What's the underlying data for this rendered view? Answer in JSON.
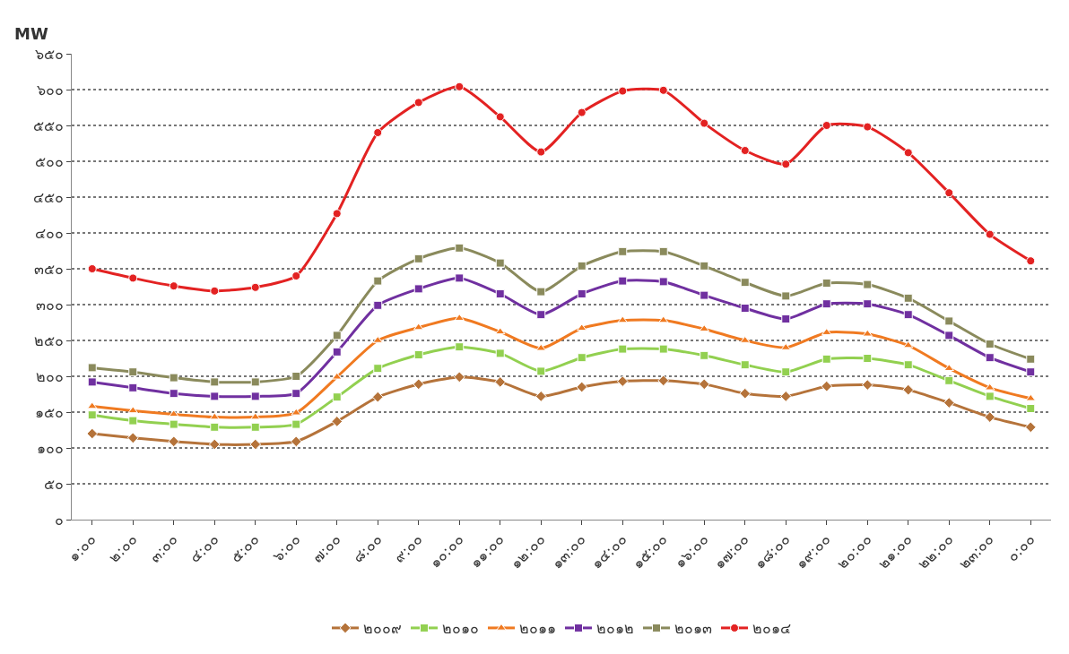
{
  "chart_data": {
    "type": "line",
    "ylabel": "MW",
    "categories": [
      "๑:๐๐",
      "๒:๐๐",
      "๓:๐๐",
      "๔:๐๐",
      "๕:๐๐",
      "๖:๐๐",
      "๗:๐๐",
      "๘:๐๐",
      "๙:๐๐",
      "๑๐:๐๐",
      "๑๑:๐๐",
      "๑๒:๐๐",
      "๑๓:๐๐",
      "๑๔:๐๐",
      "๑๕:๐๐",
      "๑๖:๐๐",
      "๑๗:๐๐",
      "๑๘:๐๐",
      "๑๙:๐๐",
      "๒๐:๐๐",
      "๒๑:๐๐",
      "๒๒:๐๐",
      "๒๓:๐๐",
      "๐:๐๐"
    ],
    "series": [
      {
        "name": "๒๐๐๙",
        "color": "#b5733a",
        "marker": "diamond",
        "values": [
          120,
          114,
          109,
          105,
          105,
          109,
          137,
          171,
          189,
          199,
          192,
          172,
          185,
          193,
          194,
          189,
          176,
          172,
          186,
          188,
          181,
          163,
          143,
          129
        ]
      },
      {
        "name": "๒๐๑๐",
        "color": "#92d050",
        "marker": "square",
        "values": [
          146,
          138,
          133,
          129,
          129,
          133,
          171,
          211,
          230,
          241,
          232,
          207,
          226,
          238,
          238,
          229,
          216,
          206,
          224,
          225,
          216,
          194,
          172,
          155
        ]
      },
      {
        "name": "๒๐๑๑",
        "color": "#f07a21",
        "marker": "triangle",
        "values": [
          158,
          152,
          147,
          143,
          143,
          149,
          199,
          250,
          268,
          281,
          262,
          239,
          267,
          278,
          278,
          266,
          250,
          240,
          261,
          259,
          243,
          211,
          184,
          169
        ]
      },
      {
        "name": "๒๐๑๒",
        "color": "#7030a0",
        "marker": "square",
        "values": [
          192,
          184,
          176,
          172,
          172,
          176,
          234,
          299,
          322,
          337,
          315,
          286,
          315,
          333,
          332,
          313,
          295,
          280,
          301,
          301,
          286,
          257,
          226,
          206
        ]
      },
      {
        "name": "๒๐๑๓",
        "color": "#8a8a5c",
        "marker": "square",
        "values": [
          212,
          206,
          198,
          192,
          192,
          200,
          257,
          333,
          364,
          379,
          358,
          318,
          354,
          374,
          374,
          354,
          331,
          312,
          330,
          328,
          309,
          277,
          245,
          224
        ]
      },
      {
        "name": "๒๐๑๔",
        "color": "#e32222",
        "marker": "circle",
        "values": [
          350,
          337,
          326,
          319,
          324,
          340,
          427,
          540,
          582,
          604,
          562,
          513,
          568,
          598,
          599,
          553,
          515,
          496,
          550,
          548,
          512,
          456,
          398,
          361
        ]
      }
    ],
    "ylim": [
      0,
      650
    ],
    "yticks": [
      {
        "value": 0,
        "label": "๐"
      },
      {
        "value": 50,
        "label": "๕๐"
      },
      {
        "value": 100,
        "label": "๑๐๐"
      },
      {
        "value": 150,
        "label": "๑๕๐"
      },
      {
        "value": 200,
        "label": "๒๐๐"
      },
      {
        "value": 250,
        "label": "๒๕๐"
      },
      {
        "value": 300,
        "label": "๓๐๐"
      },
      {
        "value": 350,
        "label": "๓๕๐"
      },
      {
        "value": 400,
        "label": "๔๐๐"
      },
      {
        "value": 450,
        "label": "๔๕๐"
      },
      {
        "value": 500,
        "label": "๕๐๐"
      },
      {
        "value": 550,
        "label": "๕๕๐"
      },
      {
        "value": 600,
        "label": "๖๐๐"
      },
      {
        "value": 650,
        "label": "๖๕๐"
      }
    ],
    "grid": "y",
    "legend": "bottom",
    "line_style": "solid"
  }
}
